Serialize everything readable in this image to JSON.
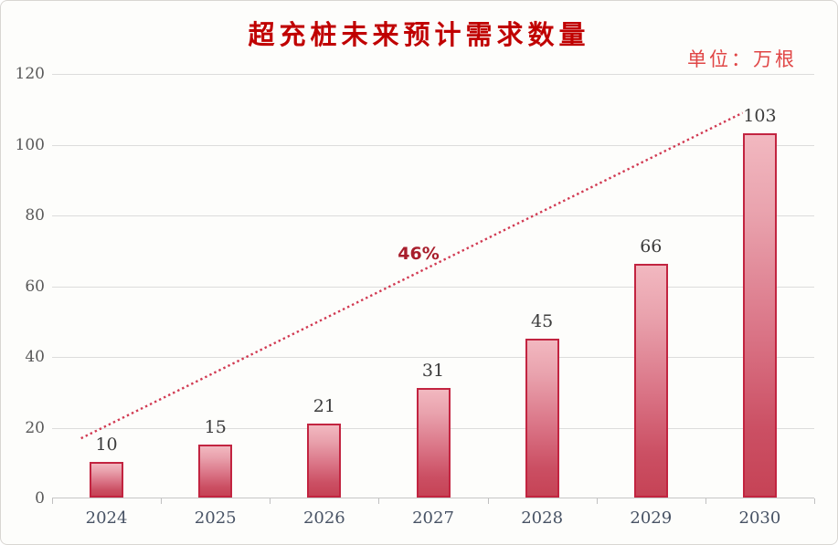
{
  "chart": {
    "title": "超充桩未来预计需求数量",
    "unit_label": "单位：万根"
  },
  "chart_data": {
    "type": "bar",
    "title": "超充桩未来预计需求数量",
    "unit": "万根",
    "categories": [
      "2024",
      "2025",
      "2026",
      "2027",
      "2028",
      "2029",
      "2030"
    ],
    "values": [
      10,
      15,
      21,
      31,
      45,
      66,
      103
    ],
    "xlabel": "",
    "ylabel": "",
    "ylim": [
      0,
      120
    ],
    "yticks": [
      0,
      20,
      40,
      60,
      80,
      100,
      120
    ],
    "grid": true,
    "legend": "none",
    "trendline": {
      "label": "46%",
      "style": "dotted",
      "start": {
        "x_frac": 0.038,
        "value": 17
      },
      "end": {
        "x_frac": 0.906,
        "value": 109
      }
    }
  },
  "colors": {
    "title": "#c00000",
    "unit": "#e04545",
    "bar_gradient_top": "#f2b8c0",
    "bar_gradient_bottom": "#c64356",
    "bar_border": "#c22440",
    "trend_line": "#d13a52",
    "annotation": "#a81e2c",
    "gridline": "#dcdcdc",
    "axis": "#c6c6c6",
    "value_label": "#3b3b3b",
    "x_label": "#475264",
    "y_label": "#595959",
    "background": "#fdfdfb"
  }
}
